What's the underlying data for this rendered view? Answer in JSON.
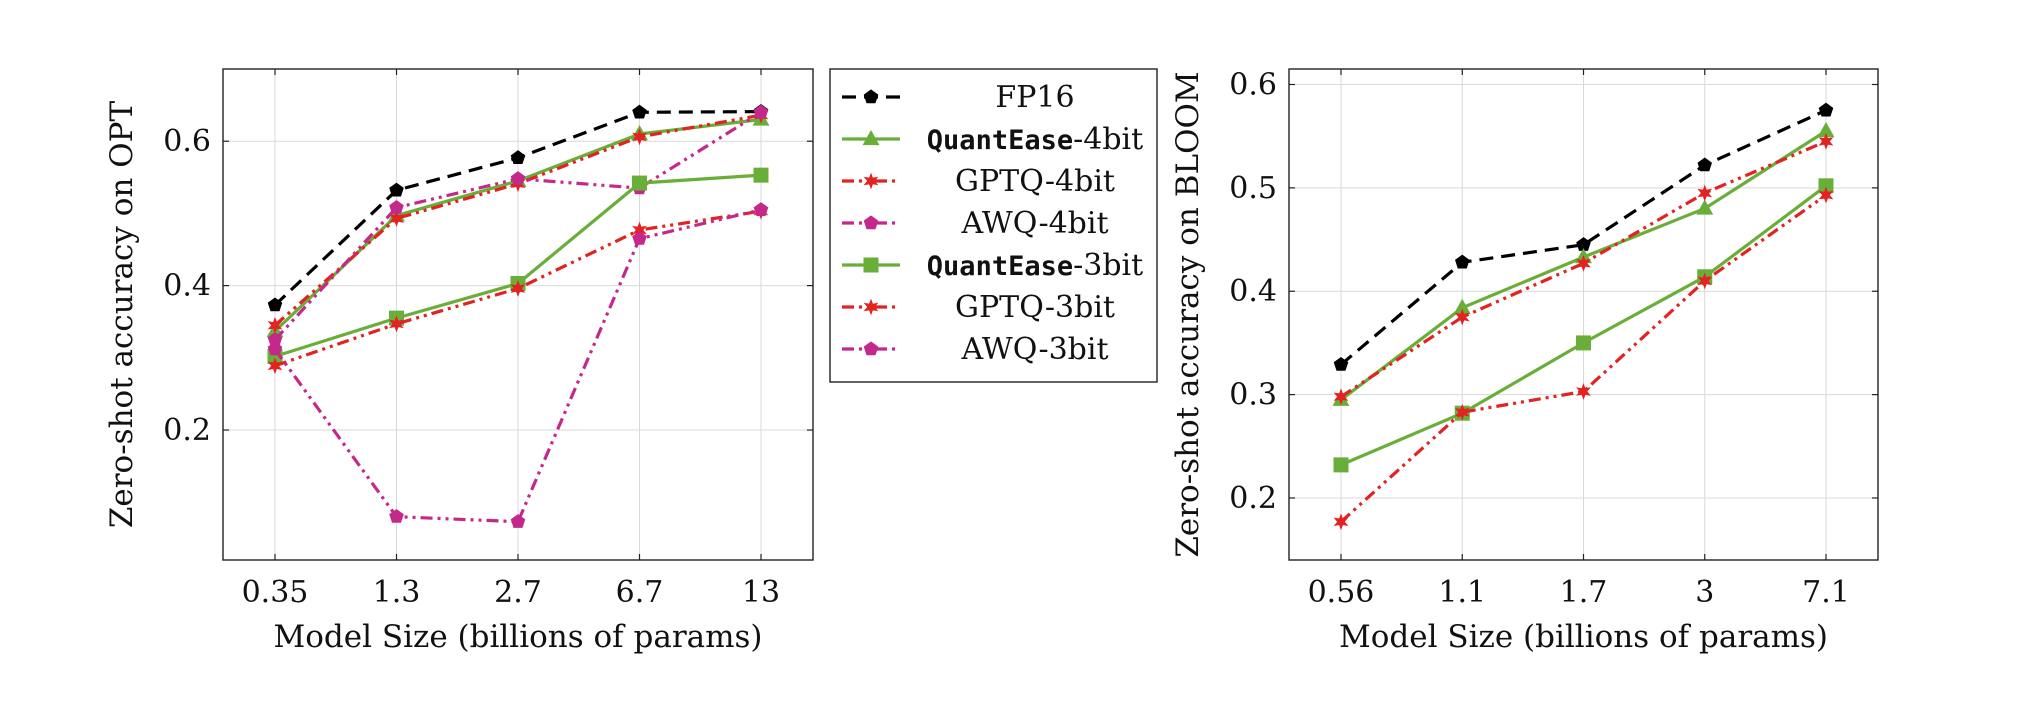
{
  "chart_data": [
    {
      "type": "line",
      "title": "",
      "xlabel": "Model Size (billions of params)",
      "ylabel": "Zero-shot accuracy on OPT",
      "categories": [
        "0.35",
        "1.3",
        "2.7",
        "6.7",
        "13"
      ],
      "ylim": [
        0.02,
        0.7
      ],
      "yticks": [
        0.2,
        0.4,
        0.6
      ],
      "ytick_labels": [
        "0.2",
        "0.4",
        "0.6"
      ],
      "grid": true,
      "series": [
        {
          "name": "FP16",
          "color": "#000000",
          "dash": "dashed",
          "marker": "pentagon",
          "values": [
            0.373,
            0.532,
            0.577,
            0.64,
            0.641
          ]
        },
        {
          "name": "QuantEase-4bit",
          "color": "#6aae3a",
          "dash": "solid",
          "marker": "triangle",
          "values": [
            0.337,
            0.497,
            0.545,
            0.61,
            0.63
          ]
        },
        {
          "name": "GPTQ-4bit",
          "color": "#e32222",
          "dash": "dashdotdot",
          "marker": "star",
          "values": [
            0.345,
            0.493,
            0.541,
            0.606,
            0.636
          ]
        },
        {
          "name": "AWQ-4bit",
          "color": "#c4288b",
          "dash": "dashdotdot",
          "marker": "pentagon",
          "values": [
            0.325,
            0.508,
            0.548,
            0.535,
            0.64
          ]
        },
        {
          "name": "QuantEase-3bit",
          "color": "#6aae3a",
          "dash": "solid",
          "marker": "square",
          "values": [
            0.302,
            0.355,
            0.403,
            0.542,
            0.553
          ]
        },
        {
          "name": "GPTQ-3bit",
          "color": "#e32222",
          "dash": "dashdotdot",
          "marker": "star",
          "values": [
            0.289,
            0.347,
            0.396,
            0.477,
            0.503
          ]
        },
        {
          "name": "AWQ-3bit",
          "color": "#c4288b",
          "dash": "dashdotdot",
          "marker": "pentagon",
          "values": [
            0.312,
            0.08,
            0.073,
            0.465,
            0.505
          ]
        }
      ]
    },
    {
      "type": "line",
      "title": "",
      "xlabel": "Model Size (billions of params)",
      "ylabel": "Zero-shot accuracy on BLOOM",
      "categories": [
        "0.56",
        "1.1",
        "1.7",
        "3",
        "7.1"
      ],
      "ylim": [
        0.14,
        0.615
      ],
      "yticks": [
        0.2,
        0.3,
        0.4,
        0.5,
        0.6
      ],
      "ytick_labels": [
        "0.2",
        "0.3",
        "0.4",
        "0.5",
        "0.6"
      ],
      "grid": true,
      "series": [
        {
          "name": "FP16",
          "color": "#000000",
          "dash": "dashed",
          "marker": "pentagon",
          "values": [
            0.329,
            0.428,
            0.445,
            0.522,
            0.575
          ]
        },
        {
          "name": "QuantEase-4bit",
          "color": "#6aae3a",
          "dash": "solid",
          "marker": "triangle",
          "values": [
            0.295,
            0.384,
            0.433,
            0.48,
            0.555
          ]
        },
        {
          "name": "GPTQ-4bit",
          "color": "#e32222",
          "dash": "dashdotdot",
          "marker": "star",
          "values": [
            0.298,
            0.375,
            0.427,
            0.495,
            0.545
          ]
        },
        {
          "name": "QuantEase-3bit",
          "color": "#6aae3a",
          "dash": "solid",
          "marker": "square",
          "values": [
            0.232,
            0.282,
            0.35,
            0.414,
            0.502
          ]
        },
        {
          "name": "GPTQ-3bit",
          "color": "#e32222",
          "dash": "dashdotdot",
          "marker": "star",
          "values": [
            0.177,
            0.283,
            0.303,
            0.41,
            0.493
          ]
        }
      ]
    }
  ],
  "legend": {
    "placement": "between plots, top",
    "items": [
      {
        "prefix": "",
        "suffix": "FP16",
        "color": "#000000",
        "dash": "dashed",
        "marker": "pentagon"
      },
      {
        "prefix": "QuantEase",
        "suffix": "-4bit",
        "color": "#6aae3a",
        "dash": "solid",
        "marker": "triangle"
      },
      {
        "prefix": "",
        "suffix": "GPTQ-4bit",
        "color": "#e32222",
        "dash": "dashdotdot",
        "marker": "star"
      },
      {
        "prefix": "",
        "suffix": "AWQ-4bit",
        "color": "#c4288b",
        "dash": "dashdotdot",
        "marker": "pentagon"
      },
      {
        "prefix": "QuantEase",
        "suffix": "-3bit",
        "color": "#6aae3a",
        "dash": "solid",
        "marker": "square"
      },
      {
        "prefix": "",
        "suffix": "GPTQ-3bit",
        "color": "#e32222",
        "dash": "dashdotdot",
        "marker": "star"
      },
      {
        "prefix": "",
        "suffix": "AWQ-3bit",
        "color": "#c4288b",
        "dash": "dashdotdot",
        "marker": "pentagon"
      }
    ]
  }
}
